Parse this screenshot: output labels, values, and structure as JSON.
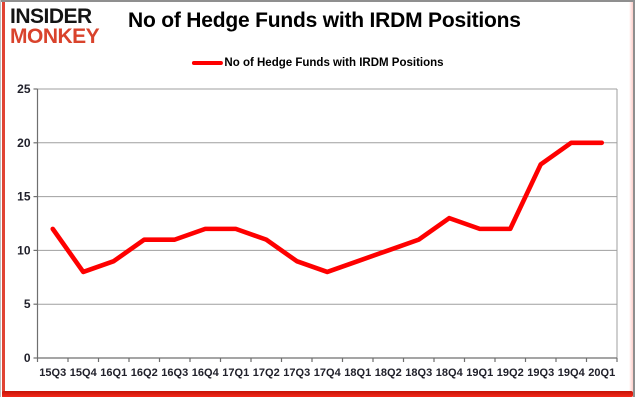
{
  "header": {
    "logo_line1": "INSIDER",
    "logo_line2": "MONKEY",
    "title": "No of Hedge Funds with IRDM Positions"
  },
  "legend": {
    "label": "No of Hedge Funds with IRDM Positions"
  },
  "chart_data": {
    "type": "line",
    "title": "No of Hedge Funds with IRDM Positions",
    "categories": [
      "15Q3",
      "15Q4",
      "16Q1",
      "16Q2",
      "16Q3",
      "16Q4",
      "17Q1",
      "17Q2",
      "17Q3",
      "17Q4",
      "18Q1",
      "18Q2",
      "18Q3",
      "18Q4",
      "19Q1",
      "19Q2",
      "19Q3",
      "19Q4",
      "20Q1"
    ],
    "series": [
      {
        "name": "No of Hedge Funds with IRDM Positions",
        "values": [
          12,
          8,
          9,
          11,
          11,
          12,
          12,
          11,
          9,
          8,
          9,
          10,
          11,
          13,
          12,
          12,
          18,
          20,
          20
        ]
      }
    ],
    "ylim": [
      0,
      25
    ],
    "yticks": [
      0,
      5,
      10,
      15,
      20,
      25
    ],
    "grid": true,
    "legend_position": "top-center",
    "xlabel": "",
    "ylabel": ""
  },
  "colors": {
    "line_red": "#fe0000",
    "logo_red": "#d9432c",
    "logo_black": "#141414",
    "frame_red": "#e8190e",
    "axis": "#6f6f6f",
    "gridline": "#9f9f9f",
    "tick_label": "#21212b"
  }
}
